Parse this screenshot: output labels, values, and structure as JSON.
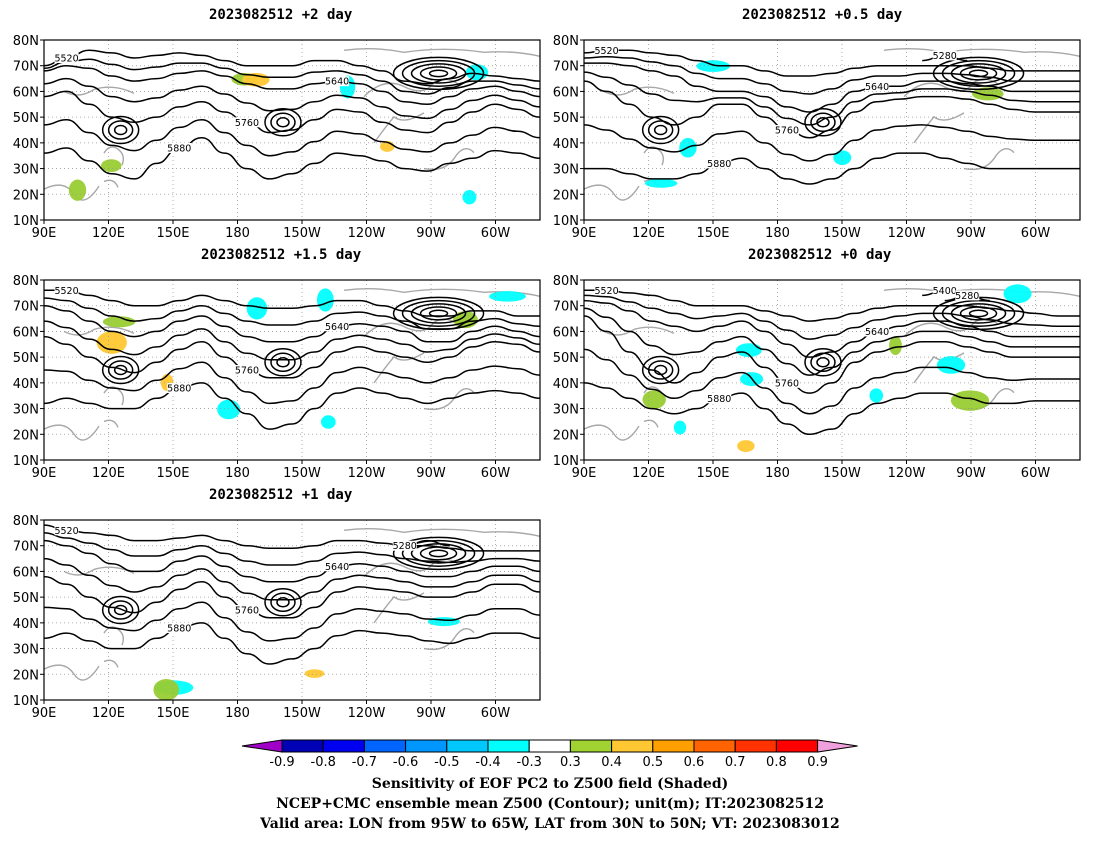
{
  "panels": [
    {
      "title": "2023082512 +2 day",
      "contours": {
        "5520": [
          70,
          73,
          76,
          75,
          73,
          74,
          75,
          74,
          72,
          70,
          70,
          70,
          72,
          72,
          70,
          68,
          64,
          63,
          65,
          67,
          66,
          65,
          64
        ],
        "5640": [
          68,
          70,
          69,
          66,
          64,
          65,
          67,
          68,
          66,
          63,
          61,
          61,
          63,
          64,
          63,
          60,
          56,
          55,
          58,
          61,
          62,
          60,
          58
        ],
        "5760": [
          58,
          60,
          55,
          50,
          48,
          50,
          54,
          56,
          52,
          48,
          44,
          45,
          49,
          53,
          52,
          48,
          45,
          44,
          48,
          52,
          55,
          53,
          50
        ],
        "5880": [
          36,
          38,
          33,
          28,
          26,
          32,
          38,
          42,
          36,
          30,
          26,
          28,
          32,
          36,
          35,
          33,
          30,
          29,
          32,
          34,
          37,
          36,
          34
        ]
      },
      "shading": {
        "green": 3,
        "yellow": 2,
        "cyan": 3
      },
      "contour_labels": [
        "5520",
        "5640",
        "5760",
        "5880"
      ]
    },
    {
      "title": "2023082512 +0.5 day",
      "contours": {
        "5520": [
          75,
          76,
          76,
          75,
          74,
          72,
          70,
          70,
          68,
          66,
          66,
          67,
          69,
          70,
          70,
          70,
          70,
          70,
          69,
          68,
          68,
          68,
          68
        ],
        "5640": [
          71,
          71,
          70,
          68,
          66,
          62,
          60,
          60,
          58,
          54,
          52,
          55,
          60,
          62,
          62,
          64,
          64,
          63,
          62,
          60,
          60,
          60,
          60
        ],
        "5760": [
          64,
          60,
          55,
          50,
          47,
          50,
          55,
          55,
          50,
          45,
          42,
          45,
          52,
          56,
          57,
          58,
          58,
          57,
          55,
          53,
          52,
          52,
          52
        ],
        "5880": [
          30,
          30,
          28,
          26,
          26,
          28,
          32,
          34,
          30,
          26,
          24,
          26,
          30,
          34,
          36,
          36,
          34,
          32,
          30,
          30,
          30,
          30,
          30
        ],
        "5280": [
          0,
          0,
          0,
          0,
          0,
          0,
          0,
          0,
          0,
          0,
          0,
          0,
          0,
          0,
          0,
          72,
          74,
          72,
          0,
          0,
          0,
          0,
          0
        ]
      },
      "shading": {
        "green": 1,
        "yellow": 0,
        "cyan": 4
      },
      "contour_labels": [
        "5520",
        "5640",
        "5760",
        "5880",
        "5280"
      ]
    },
    {
      "title": "2023082512 +1.5 day",
      "contours": {
        "5520": [
          76,
          76,
          74,
          72,
          70,
          70,
          72,
          74,
          72,
          70,
          69,
          69,
          70,
          72,
          72,
          70,
          68,
          66,
          66,
          68,
          68,
          66,
          66
        ],
        "5640": [
          70,
          68,
          64,
          60,
          58,
          60,
          64,
          66,
          62,
          58,
          56,
          56,
          58,
          62,
          63,
          62,
          60,
          56,
          56,
          60,
          62,
          60,
          58
        ],
        "5760": [
          58,
          55,
          50,
          46,
          44,
          48,
          53,
          56,
          50,
          45,
          42,
          42,
          46,
          52,
          54,
          52,
          50,
          48,
          50,
          54,
          56,
          55,
          52
        ],
        "5880": [
          32,
          34,
          32,
          30,
          30,
          34,
          38,
          40,
          34,
          28,
          22,
          24,
          30,
          36,
          38,
          36,
          34,
          32,
          34,
          36,
          37,
          36,
          34
        ]
      },
      "shading": {
        "green": 2,
        "yellow": 2,
        "cyan": 5
      },
      "contour_labels": [
        "5520",
        "5640",
        "5760",
        "5880"
      ]
    },
    {
      "title": "2023082512 +0 day",
      "contours": {
        "5400": [
          0,
          0,
          0,
          0,
          0,
          0,
          0,
          0,
          0,
          0,
          0,
          0,
          0,
          0,
          0,
          74,
          76,
          74,
          0,
          0,
          0,
          0,
          0
        ],
        "5520": [
          76,
          76,
          75,
          74,
          72,
          70,
          70,
          70,
          68,
          66,
          64,
          65,
          67,
          69,
          70,
          70,
          70,
          70,
          69,
          68,
          67,
          66,
          66
        ],
        "5640": [
          72,
          71,
          68,
          64,
          62,
          60,
          62,
          64,
          60,
          55,
          50,
          52,
          56,
          60,
          62,
          64,
          64,
          62,
          60,
          58,
          58,
          58,
          58
        ],
        "5760": [
          66,
          60,
          52,
          45,
          40,
          44,
          50,
          52,
          46,
          40,
          36,
          40,
          48,
          52,
          54,
          56,
          56,
          54,
          52,
          50,
          50,
          50,
          50
        ],
        "5880": [
          40,
          38,
          34,
          30,
          28,
          30,
          34,
          36,
          30,
          24,
          20,
          22,
          28,
          32,
          34,
          36,
          36,
          34,
          32,
          32,
          33,
          33,
          33
        ],
        "5280": [
          0,
          0,
          0,
          0,
          0,
          0,
          0,
          0,
          0,
          0,
          0,
          0,
          0,
          0,
          0,
          0,
          72,
          74,
          72,
          0,
          0,
          0,
          0
        ]
      },
      "shading": {
        "green": 3,
        "yellow": 1,
        "cyan": 6
      },
      "contour_labels": [
        "5520",
        "5640",
        "5760",
        "5880",
        "5400",
        "5280"
      ]
    },
    {
      "title": "2023082512 +1 day",
      "contours": {
        "5520": [
          78,
          76,
          75,
          74,
          72,
          72,
          73,
          74,
          72,
          70,
          69,
          69,
          70,
          72,
          72,
          71,
          70,
          70,
          69,
          68,
          68,
          68,
          68
        ],
        "5640": [
          72,
          70,
          67,
          63,
          60,
          60,
          64,
          66,
          62,
          58,
          56,
          56,
          58,
          62,
          63,
          62,
          60,
          58,
          58,
          60,
          62,
          62,
          60
        ],
        "5760": [
          58,
          55,
          50,
          46,
          44,
          48,
          53,
          56,
          50,
          45,
          42,
          42,
          46,
          52,
          54,
          53,
          52,
          50,
          50,
          52,
          55,
          55,
          52
        ],
        "5880": [
          34,
          36,
          33,
          30,
          30,
          34,
          38,
          40,
          34,
          28,
          24,
          26,
          30,
          35,
          37,
          36,
          35,
          33,
          32,
          34,
          36,
          36,
          34
        ],
        "5280": [
          0,
          0,
          0,
          0,
          0,
          0,
          0,
          0,
          0,
          0,
          0,
          0,
          0,
          0,
          0,
          0,
          70,
          72,
          70,
          0,
          0,
          0,
          0
        ]
      },
      "shading": {
        "green": 1,
        "yellow": 1,
        "cyan": 2
      },
      "contour_labels": [
        "5520",
        "5640",
        "5760",
        "5880",
        "5280"
      ]
    }
  ],
  "map_axes": {
    "lat_labels": [
      "10N",
      "20N",
      "30N",
      "40N",
      "50N",
      "60N",
      "70N",
      "80N"
    ],
    "lon_labels": [
      "90E",
      "120E",
      "150E",
      "180",
      "150W",
      "120W",
      "90W",
      "60W"
    ]
  },
  "colorbar": {
    "labels": [
      "-0.9",
      "-0.8",
      "-0.7",
      "-0.6",
      "-0.5",
      "-0.4",
      "-0.3",
      "0.3",
      "0.4",
      "0.5",
      "0.6",
      "0.7",
      "0.8",
      "0.9"
    ],
    "colors": [
      "#a000c8",
      "#0000b4",
      "#0000f0",
      "#0064ff",
      "#0096ff",
      "#00c8ff",
      "#00ffff",
      "#ffffff",
      "#a0d232",
      "#ffc832",
      "#ffa000",
      "#ff6400",
      "#ff3200",
      "#ff0000",
      "#f0a0dc"
    ]
  },
  "caption": {
    "line1": "Sensitivity of EOF PC2 to Z500 field (Shaded)",
    "line2": "NCEP+CMC ensemble mean Z500 (Contour); unit(m); IT:2023082512",
    "line3": "Valid area: LON from 95W to 65W, LAT from 30N to 50N; VT: 2023083012"
  }
}
